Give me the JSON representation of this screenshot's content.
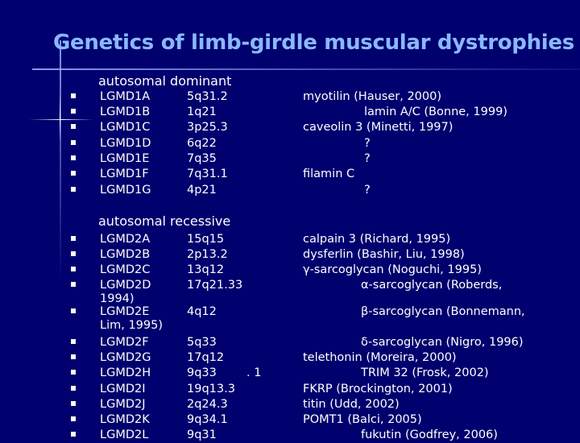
{
  "title": "Genetics of limb-girdle muscular dystrophies",
  "dominant": {
    "heading": "autosomal dominant",
    "rows": [
      {
        "name": "LGMD1A",
        "locus": "5q31.2",
        "protein": "myotilin (Hauser, 2000)"
      },
      {
        "name": "LGMD1B",
        "locus": "1q21",
        "protein": "lamin A/C (Bonne, 1999)"
      },
      {
        "name": "LGMD1C",
        "locus": "3p25.3",
        "protein": "caveolin 3 (Minetti, 1997)"
      },
      {
        "name": "LGMD1D",
        "locus": "6q22",
        "protein": "?"
      },
      {
        "name": "LGMD1E",
        "locus": "7q35",
        "protein": "?"
      },
      {
        "name": "LGMD1F",
        "locus": "7q31.1",
        "protein": "filamin C"
      },
      {
        "name": "LGMD1G",
        "locus": "4p21",
        "protein": "?"
      }
    ]
  },
  "recessive": {
    "heading": "autosomal recessive",
    "rows": [
      {
        "name": "LGMD2A",
        "locus": "15q15",
        "protein": "calpain 3 (Richard, 1995)"
      },
      {
        "name": "LGMD2B",
        "locus": "2p13.2",
        "protein": "dysferlin (Bashir, Liu, 1998)"
      },
      {
        "name": "LGMD2C",
        "locus": "13q12",
        "protein": "γ-sarcoglycan (Noguchi, 1995)"
      },
      {
        "name": "LGMD2D",
        "locus": "17q21.33",
        "protein": "α-sarcoglycan (Roberds,",
        "cont": "1994)"
      },
      {
        "name": "LGMD2E",
        "locus": "4q12",
        "protein": "β-sarcoglycan (Bonnemann,",
        "cont": "Lim, 1995)"
      },
      {
        "name": "LGMD2F",
        "locus": "5q33",
        "protein": "δ-sarcoglycan (Nigro, 1996)"
      },
      {
        "name": "LGMD2G",
        "locus": "17q12",
        "protein": "telethonin (Moreira, 2000)"
      },
      {
        "name": "LGMD2H",
        "locus": "9q33",
        "locus_suffix": ". 1",
        "protein": "TRIM 32 (Frosk, 2002)"
      },
      {
        "name": "LGMD2I",
        "locus": "19q13.3",
        "protein": "FKRP (Brockington, 2001)"
      },
      {
        "name": "LGMD2J",
        "locus": "2q24.3",
        "protein": "titin (Udd, 2002)"
      },
      {
        "name": "LGMD2K",
        "locus": "9q34.1",
        "protein": "POMT1 (Balci, 2005)"
      },
      {
        "name": "LGMD2L",
        "locus": "9q31",
        "protein": "fukutin (Godfrey, 2006)"
      }
    ]
  },
  "colors": {
    "background": "#00006e",
    "title": "#8ab8ff",
    "text": "#ffffff"
  }
}
